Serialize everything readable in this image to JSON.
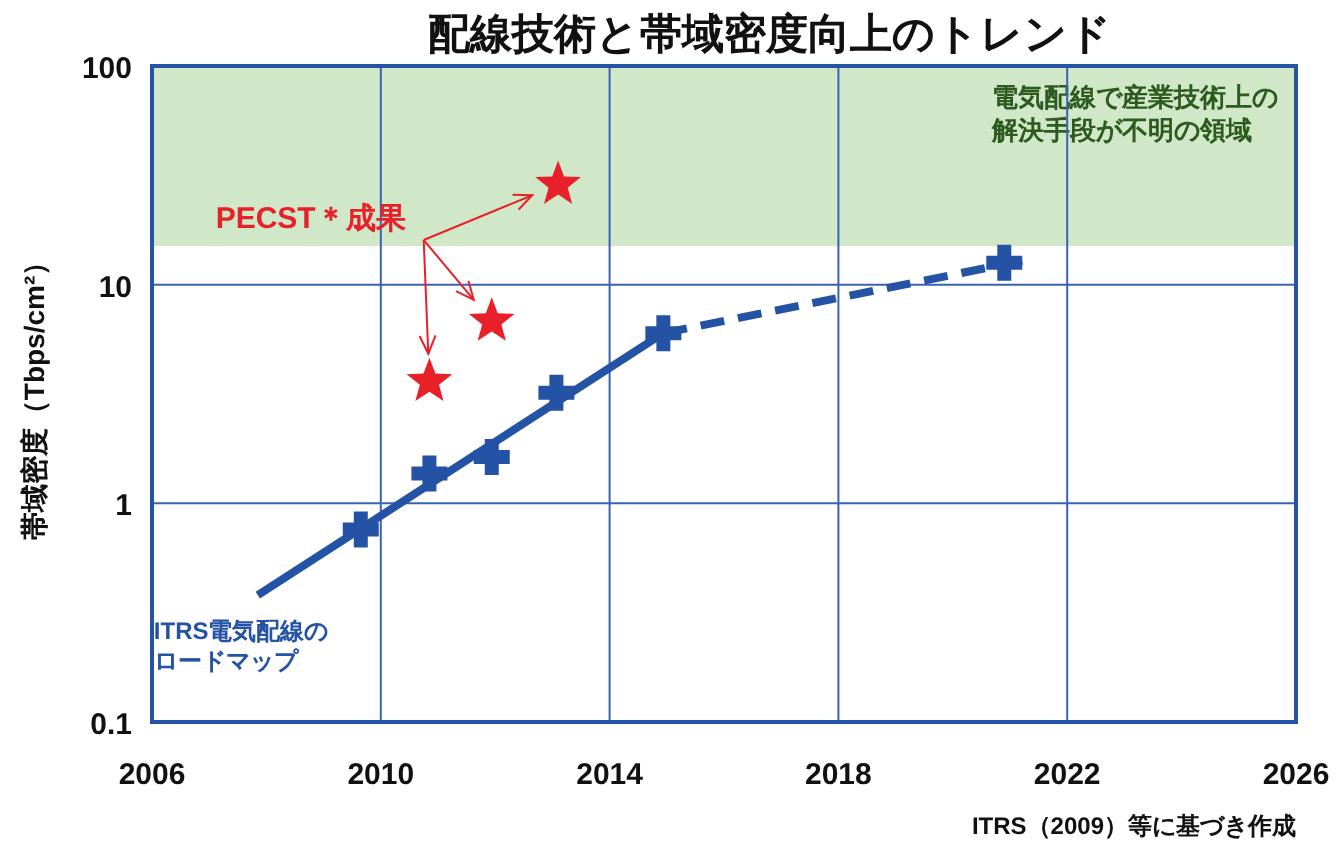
{
  "chart_data": {
    "type": "line",
    "title": "配線技術と帯域密度向上のトレンド",
    "ylabel": "帯域密度（Tbps/cm²）",
    "log": "y",
    "grid": true,
    "xlim": [
      2006,
      2026
    ],
    "xticks": [
      2006,
      2010,
      2014,
      2018,
      2022,
      2026
    ],
    "ylim": [
      0.1,
      100
    ],
    "yticks": [
      0.1,
      1,
      10,
      100
    ],
    "bands": [
      {
        "axis": "y",
        "from": 15,
        "to": 100,
        "label": "電気配線で産業技術上の解決手段が不明の領域",
        "color": "#d0e8c8"
      }
    ],
    "series": [
      {
        "color": "#2452a4",
        "line_style": "solid",
        "marker": "none",
        "x": [
          2007.85,
          2014.94
        ],
        "values": [
          0.38,
          6.0
        ]
      },
      {
        "color": "#2452a4",
        "line_style": "dashed",
        "marker": "none",
        "x": [
          2014.94,
          2021.3
        ],
        "values": [
          6.0,
          13
        ]
      },
      {
        "type": "scatter",
        "color": "#2452a4",
        "marker": "cross",
        "x": [
          2009.65,
          2010.85,
          2011.94,
          2013.07,
          2014.94,
          2020.9
        ],
        "values": [
          0.76,
          1.37,
          1.63,
          3.2,
          6.0,
          12.6
        ]
      },
      {
        "type": "scatter",
        "color": "#e8202a",
        "marker": "star",
        "x": [
          2010.85,
          2011.94,
          2013.1
        ],
        "values": [
          3.6,
          6.8,
          28.7
        ]
      }
    ],
    "annotations": [
      {
        "text": "PECST＊成果",
        "x": 2010.75,
        "y": 16
      },
      {
        "text": "ITRS電気配線のロードマップ",
        "x": 2007.85,
        "y": 0.38
      },
      "ITRS（2009）等に基づき作成"
    ]
  }
}
